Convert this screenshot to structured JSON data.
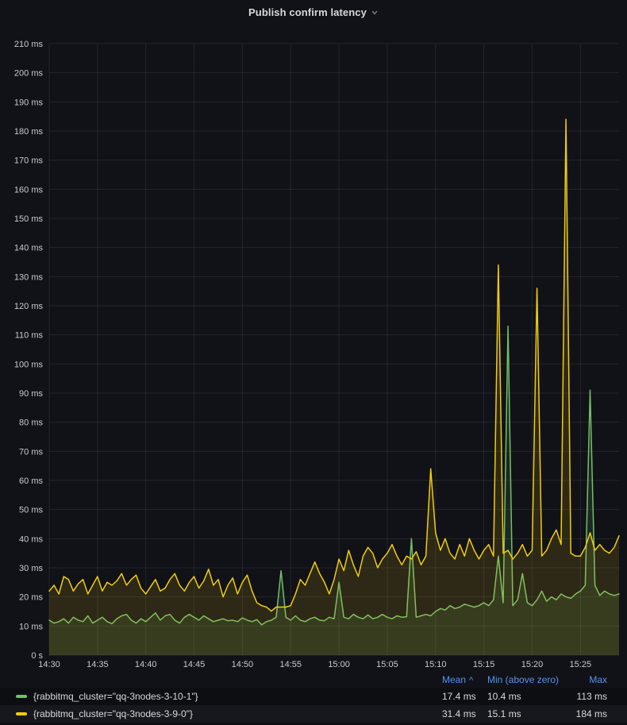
{
  "panel": {
    "title": "Publish confirm latency"
  },
  "colors": {
    "background": "#111217",
    "grid": "rgba(240,250,255,0.08)",
    "axis_text": "#C9CACF",
    "green": "#73BF69",
    "yellow": "#F2CC0C",
    "legend_header_blue": "#5794F2"
  },
  "chart_data": {
    "type": "line",
    "title": "Publish confirm latency",
    "xlabel": "",
    "ylabel": "",
    "y_unit": "ms",
    "ylim": [
      0,
      210
    ],
    "y_tick_step": 10,
    "y_tick_labels": [
      "0 s",
      "10 ms",
      "20 ms",
      "30 ms",
      "40 ms",
      "50 ms",
      "60 ms",
      "70 ms",
      "80 ms",
      "90 ms",
      "100 ms",
      "110 ms",
      "120 ms",
      "130 ms",
      "140 ms",
      "150 ms",
      "160 ms",
      "170 ms",
      "180 ms",
      "190 ms",
      "200 ms",
      "210 ms"
    ],
    "x_tick_labels": [
      "14:30",
      "14:35",
      "14:40",
      "14:45",
      "14:50",
      "14:55",
      "15:00",
      "15:05",
      "15:10",
      "15:15",
      "15:20",
      "15:25"
    ],
    "x_tick_minutes": [
      0,
      5,
      10,
      15,
      20,
      25,
      30,
      35,
      40,
      45,
      50,
      55
    ],
    "x_total_minutes": 59,
    "step_minutes": 0.5,
    "grid": true,
    "legend_position": "bottom-table",
    "fill_opacity": 0.13,
    "line_width": 1.5,
    "series": [
      {
        "name": "{rabbitmq_cluster=\"qq-3nodes-3-10-1\"}",
        "color": "#73BF69",
        "values": [
          12,
          11,
          11.5,
          12.5,
          11,
          13,
          12,
          11.5,
          13.5,
          11,
          12,
          13,
          11.5,
          10.8,
          12.5,
          13.5,
          14,
          12,
          11,
          12.5,
          11.5,
          13,
          14.5,
          12,
          13.5,
          14,
          12,
          11,
          13,
          14,
          13,
          12,
          13.5,
          12.5,
          11.5,
          12,
          12.5,
          11.8,
          12,
          11.5,
          12.8,
          12,
          11.5,
          12.2,
          10.4,
          11.5,
          12,
          13,
          29,
          13,
          12,
          13.5,
          12,
          11.5,
          12.5,
          13,
          12,
          11.8,
          13,
          12.5,
          25,
          13,
          12.5,
          14,
          13,
          12.5,
          13.8,
          12.5,
          13,
          14,
          13,
          12.5,
          13.5,
          13,
          13.2,
          40,
          13,
          13.5,
          14,
          13.5,
          15,
          16,
          15.5,
          17,
          16,
          16.5,
          17.5,
          17,
          16.5,
          17,
          18,
          17,
          19,
          34,
          18,
          113,
          17,
          19,
          28,
          18,
          17,
          19,
          22,
          18.5,
          20,
          19,
          21,
          20,
          19.5,
          21,
          22,
          24,
          91,
          24,
          20.5,
          22,
          21,
          20.5,
          21
        ]
      },
      {
        "name": "{rabbitmq_cluster=\"qq-3nodes-3-9-0\"}",
        "color": "#F2CC0C",
        "values": [
          22,
          24,
          21,
          27,
          26,
          22,
          24.5,
          26,
          21,
          24,
          27,
          22,
          25,
          24,
          25.5,
          28,
          24,
          26,
          27.5,
          23,
          21,
          23.5,
          26,
          22,
          23,
          26,
          28,
          24,
          22,
          25,
          27,
          23,
          25.5,
          29.5,
          24,
          26,
          20,
          24,
          26.5,
          21,
          25,
          27.5,
          22,
          18,
          17,
          16.5,
          15.1,
          16.5,
          16.5,
          16.5,
          17,
          21,
          26,
          24,
          28,
          32,
          28,
          25,
          21,
          26,
          33,
          29,
          36,
          31,
          27,
          34,
          37,
          35,
          30,
          33,
          35,
          38,
          34,
          31,
          34,
          33,
          35.5,
          31,
          34,
          64,
          42,
          36,
          40,
          35,
          33,
          38,
          34,
          40,
          36,
          33,
          36,
          38,
          34,
          134,
          35,
          36,
          33,
          35,
          38,
          34,
          36,
          126,
          34,
          36,
          40,
          43,
          38,
          184,
          35,
          34,
          34,
          37,
          42,
          36,
          38,
          36,
          35,
          37,
          41
        ]
      }
    ]
  },
  "legend": {
    "columns": [
      {
        "label": "Mean",
        "sort": "^"
      },
      {
        "label": "Min (above zero)"
      },
      {
        "label": "Max"
      }
    ],
    "rows": [
      {
        "label": "{rabbitmq_cluster=\"qq-3nodes-3-10-1\"}",
        "color": "#73BF69",
        "mean": "17.4 ms",
        "min": "10.4 ms",
        "max": "113 ms"
      },
      {
        "label": "{rabbitmq_cluster=\"qq-3nodes-3-9-0\"}",
        "color": "#F2CC0C",
        "mean": "31.4 ms",
        "min": "15.1 ms",
        "max": "184 ms"
      }
    ]
  }
}
